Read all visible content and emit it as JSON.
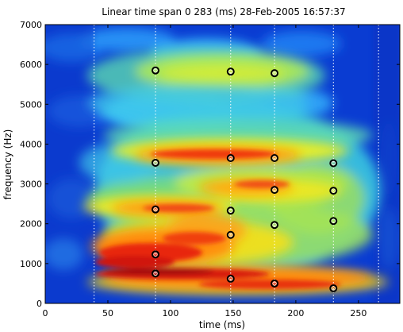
{
  "chart_data": {
    "type": "heatmap",
    "title": "Linear time span 0 283 (ms) 28-Feb-2005 16:57:37",
    "xlabel": "time (ms)",
    "ylabel": "frequency (Hz)",
    "xlim": [
      0,
      283
    ],
    "ylim": [
      0,
      7000
    ],
    "xticks": [
      0,
      50,
      100,
      150,
      200,
      250
    ],
    "yticks": [
      0,
      1000,
      2000,
      3000,
      4000,
      5000,
      6000,
      7000
    ],
    "grid": false,
    "colormap": "jet",
    "colors": {
      "marker_edge": "#000000",
      "marker_fill": "#ffffff",
      "guide_lines": "#ffffff"
    },
    "vertical_guides_ms": [
      39,
      88,
      148,
      183,
      230,
      266
    ],
    "marker_style": "open circle",
    "formant_markers": [
      {
        "x": 88,
        "y": 5850
      },
      {
        "x": 148,
        "y": 5820
      },
      {
        "x": 183,
        "y": 5780
      },
      {
        "x": 88,
        "y": 3530
      },
      {
        "x": 148,
        "y": 3650
      },
      {
        "x": 183,
        "y": 3650
      },
      {
        "x": 230,
        "y": 3520
      },
      {
        "x": 183,
        "y": 2850
      },
      {
        "x": 230,
        "y": 2830
      },
      {
        "x": 88,
        "y": 2360
      },
      {
        "x": 148,
        "y": 2330
      },
      {
        "x": 183,
        "y": 1970
      },
      {
        "x": 230,
        "y": 2070
      },
      {
        "x": 148,
        "y": 1720
      },
      {
        "x": 88,
        "y": 1230
      },
      {
        "x": 88,
        "y": 750
      },
      {
        "x": 148,
        "y": 620
      },
      {
        "x": 183,
        "y": 500
      },
      {
        "x": 230,
        "y": 380
      }
    ]
  }
}
